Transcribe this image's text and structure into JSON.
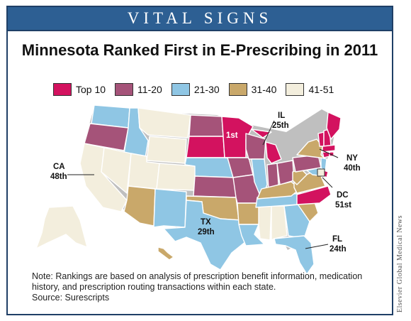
{
  "banner": {
    "title": "VITAL SIGNS"
  },
  "header": {
    "title": "Minnesota Ranked First in E-Prescribing in 2011"
  },
  "legend": [
    {
      "label": "Top 10",
      "color": "#d3125f"
    },
    {
      "label": "11-20",
      "color": "#a55379"
    },
    {
      "label": "21-30",
      "color": "#8fc6e4"
    },
    {
      "label": "31-40",
      "color": "#c9a86a"
    },
    {
      "label": "41-51",
      "color": "#f3eedd"
    }
  ],
  "map": {
    "callouts": {
      "mn": {
        "state": "1st"
      },
      "il": {
        "state": "IL",
        "rank": "25th"
      },
      "ca": {
        "state": "CA",
        "rank": "48th"
      },
      "ny": {
        "state": "NY",
        "rank": "40th"
      },
      "dc": {
        "state": "DC",
        "rank": "51st"
      },
      "tx": {
        "state": "TX",
        "rank": "29th"
      },
      "fl": {
        "state": "FL",
        "rank": "24th"
      }
    }
  },
  "note": {
    "text": "Note: Rankings are based on analysis of prescription benefit information, medication history, and prescription routing transactions within each state.",
    "source": "Source: Surescripts"
  },
  "credit": "Elsevier Global Medical News"
}
